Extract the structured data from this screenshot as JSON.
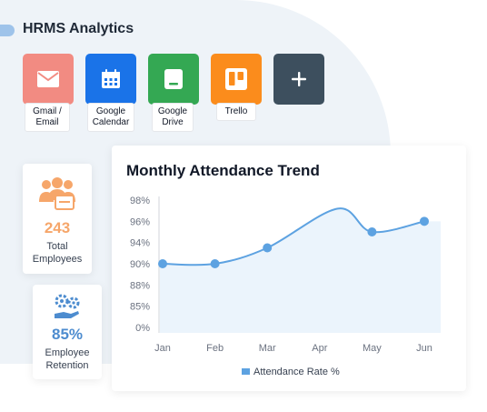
{
  "app": {
    "title": "HRMS Analytics"
  },
  "integrations": [
    {
      "label_line1": "Gmail /",
      "label_line2": "Email",
      "icon": "mail-icon",
      "color": "#f28b82"
    },
    {
      "label_line1": "Google",
      "label_line2": "Calendar",
      "icon": "calendar-icon",
      "color": "#1a73e8"
    },
    {
      "label_line1": "Google",
      "label_line2": "Drive",
      "icon": "drive-icon",
      "color": "#34a853"
    },
    {
      "label_line1": "Trello",
      "label_line2": "",
      "icon": "trello-icon",
      "color": "#fb8c1c"
    }
  ],
  "add_integration": {
    "icon": "plus-icon",
    "color": "#3d4f5e"
  },
  "stats": {
    "employees": {
      "value": "243",
      "label_line1": "Total",
      "label_line2": "Employees",
      "icon": "people-icon",
      "color": "#f6a66a"
    },
    "retention": {
      "value": "85%",
      "label_line1": "Employee",
      "label_line2": "Retention",
      "icon": "gears-hand-icon",
      "color": "#4d8ccf"
    }
  },
  "chart_data": {
    "type": "line",
    "title": "Monthly Attendance Trend",
    "categories": [
      "Jan",
      "Feb",
      "Mar",
      "Apr",
      "May",
      "Jun"
    ],
    "y_tick_labels": [
      "0%",
      "85%",
      "88%",
      "90%",
      "94%",
      "96%",
      "98%"
    ],
    "series": [
      {
        "name": "Attendance Rate %",
        "values": [
          90,
          90,
          93,
          null,
          95,
          96
        ],
        "color": "#5da2e1"
      }
    ],
    "legend_position": "bottom-center",
    "grid": false,
    "area_fill": true
  }
}
